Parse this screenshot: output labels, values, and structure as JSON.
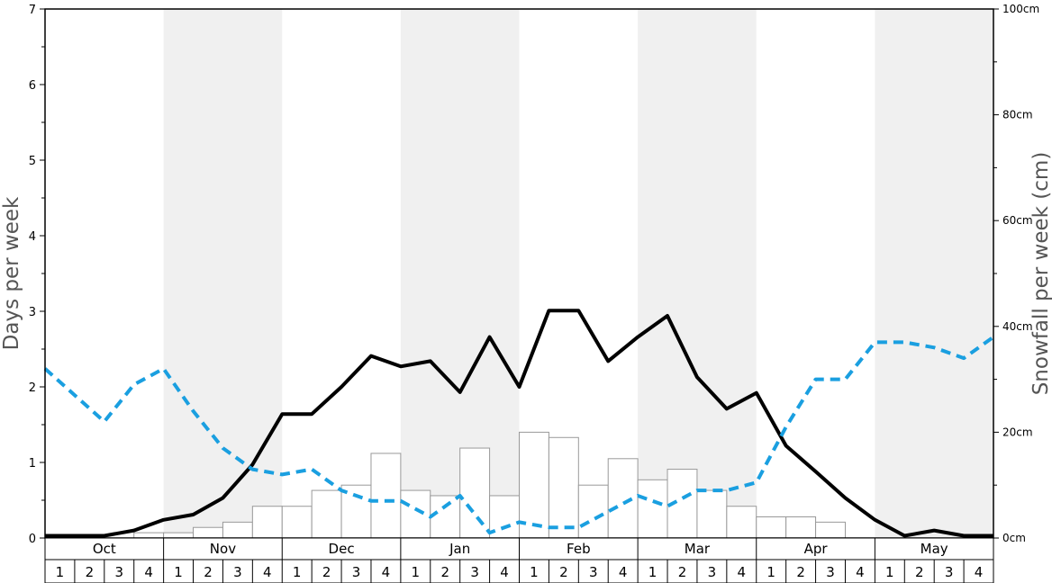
{
  "chart_data": {
    "type": "bar",
    "left_axis": {
      "label": "Days per week",
      "ylim": [
        0,
        7
      ],
      "ticks": [
        "0",
        "1",
        "2",
        "3",
        "4",
        "5",
        "6",
        "7"
      ]
    },
    "right_axis": {
      "label": "Snowfall per week (cm)",
      "ylim": [
        0,
        100
      ],
      "ticks": [
        "0cm",
        "20cm",
        "40cm",
        "60cm",
        "80cm",
        "100cm"
      ]
    },
    "months": [
      "Oct",
      "Nov",
      "Dec",
      "Jan",
      "Feb",
      "Mar",
      "Apr",
      "May"
    ],
    "weeks": [
      "1",
      "2",
      "3",
      "4"
    ],
    "shaded_months": [
      "Nov",
      "Jan",
      "Mar",
      "May"
    ],
    "colors": {
      "bars_fill": "#ffffff",
      "bars_stroke": "#999999",
      "solid_line": "#000000",
      "dashed_line": "#1a9fe0",
      "shade": "#f0f0f0"
    },
    "series": [
      {
        "chart": "bar",
        "axis": "right",
        "values": [
          0,
          0,
          0,
          1,
          1,
          2,
          3,
          6,
          6,
          9,
          10,
          16,
          9,
          8,
          17,
          8,
          20,
          19,
          10,
          15,
          11,
          13,
          9,
          6,
          4,
          4,
          3,
          0,
          0,
          0,
          0,
          0
        ]
      },
      {
        "chart": "line",
        "style": "solid",
        "axis": "left",
        "values": [
          0.03,
          0.03,
          0.03,
          0.1,
          0.24,
          0.31,
          0.53,
          0.97,
          1.64,
          1.64,
          2.0,
          2.41,
          2.27,
          2.34,
          1.93,
          2.66,
          2.0,
          3.01,
          3.01,
          2.34,
          2.66,
          2.94,
          2.13,
          1.71,
          1.92,
          1.22,
          0.88,
          0.53,
          0.24,
          0.03,
          0.1,
          0.03,
          0.03
        ]
      },
      {
        "chart": "line",
        "style": "dashed",
        "axis": "right",
        "values": [
          32,
          27,
          22,
          29,
          32,
          24,
          17,
          13,
          12,
          13,
          9,
          7,
          7,
          4,
          8,
          1,
          3,
          2,
          2,
          5,
          8,
          6,
          9,
          9,
          10.5,
          21,
          30,
          30,
          37,
          37,
          36,
          34,
          38
        ]
      }
    ]
  }
}
